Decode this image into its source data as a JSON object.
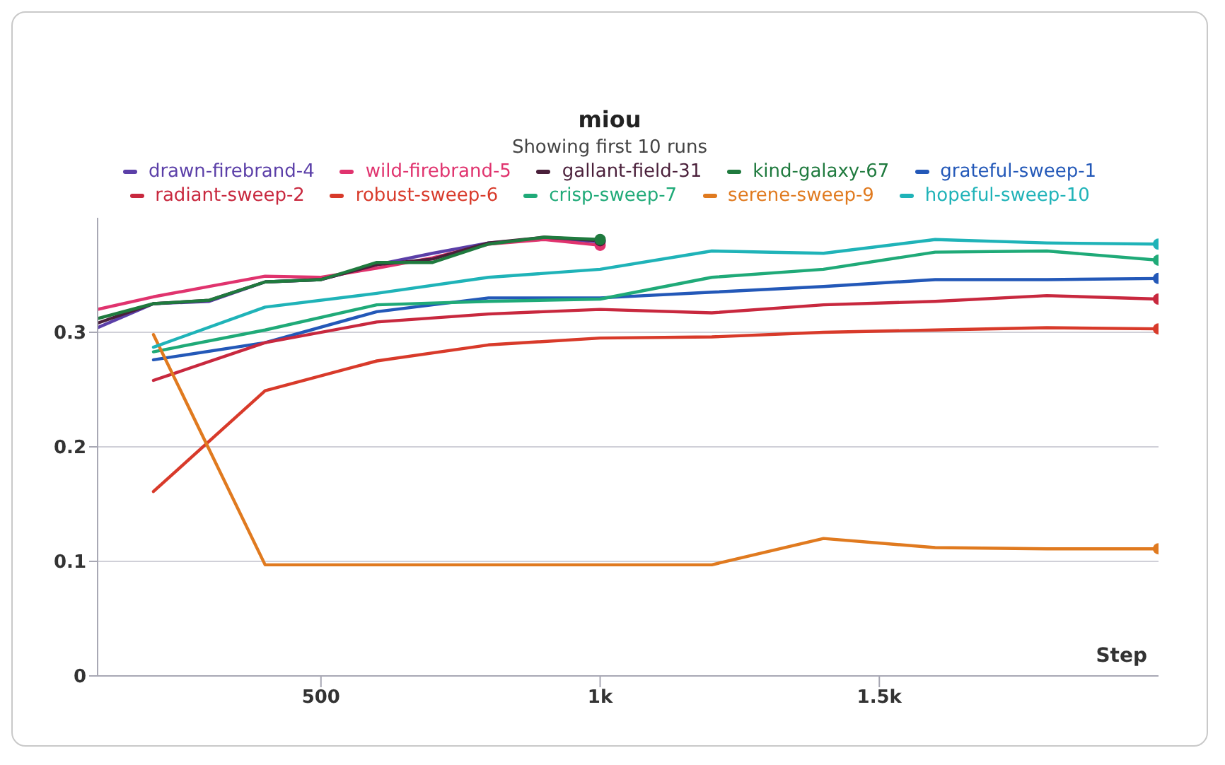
{
  "chart_data": {
    "type": "line",
    "title": "miou",
    "subtitle": "Showing first 10 runs",
    "xlabel": "Step",
    "xlim": [
      100,
      2000
    ],
    "xticks": [
      {
        "value": 500,
        "label": "500"
      },
      {
        "value": 1000,
        "label": "1k"
      },
      {
        "value": 1500,
        "label": "1.5k"
      }
    ],
    "ylim": [
      0,
      0.4
    ],
    "yticks": [
      0,
      0.1,
      0.2,
      0.3
    ],
    "grid": "y",
    "legend": "top",
    "line_style": "solid",
    "series": [
      {
        "name": "drawn-firebrand-4",
        "color": "#5b3fa8",
        "x": [
          100,
          200,
          300,
          400,
          500,
          600,
          700,
          800,
          900,
          1000
        ],
        "values": [
          0.304,
          0.325,
          0.327,
          0.344,
          0.346,
          0.359,
          0.369,
          0.378,
          0.382,
          0.379
        ]
      },
      {
        "name": "wild-firebrand-5",
        "color": "#e0336e",
        "x": [
          100,
          200,
          300,
          400,
          500,
          600,
          700,
          800,
          900,
          1000
        ],
        "values": [
          0.32,
          0.331,
          0.34,
          0.349,
          0.348,
          0.356,
          0.365,
          0.377,
          0.381,
          0.376
        ]
      },
      {
        "name": "gallant-field-31",
        "color": "#4a1f3a",
        "x": [
          100,
          200,
          300,
          400,
          500,
          600,
          700,
          800,
          900,
          1000
        ],
        "values": [
          0.308,
          0.325,
          0.328,
          0.344,
          0.346,
          0.359,
          0.364,
          0.378,
          0.383,
          0.38
        ]
      },
      {
        "name": "kind-galaxy-67",
        "color": "#1f7a3e",
        "x": [
          100,
          200,
          300,
          400,
          500,
          600,
          700,
          800,
          900,
          1000
        ],
        "values": [
          0.312,
          0.325,
          0.328,
          0.344,
          0.346,
          0.361,
          0.361,
          0.377,
          0.383,
          0.381
        ]
      },
      {
        "name": "grateful-sweep-1",
        "color": "#2358b8",
        "x": [
          200,
          400,
          600,
          800,
          1000,
          1200,
          1400,
          1600,
          1800,
          2000
        ],
        "values": [
          0.276,
          0.291,
          0.318,
          0.33,
          0.33,
          0.335,
          0.34,
          0.346,
          0.346,
          0.347
        ]
      },
      {
        "name": "radiant-sweep-2",
        "color": "#c8283e",
        "x": [
          200,
          400,
          600,
          800,
          1000,
          1200,
          1400,
          1600,
          1800,
          2000
        ],
        "values": [
          0.258,
          0.291,
          0.309,
          0.316,
          0.32,
          0.317,
          0.324,
          0.327,
          0.332,
          0.329
        ]
      },
      {
        "name": "robust-sweep-6",
        "color": "#d83a2a",
        "x": [
          200,
          400,
          600,
          800,
          1000,
          1200,
          1400,
          1600,
          1800,
          2000
        ],
        "values": [
          0.161,
          0.249,
          0.275,
          0.289,
          0.295,
          0.296,
          0.3,
          0.302,
          0.304,
          0.303
        ]
      },
      {
        "name": "crisp-sweep-7",
        "color": "#1faa78",
        "x": [
          200,
          400,
          600,
          800,
          1000,
          1200,
          1400,
          1600,
          1800,
          2000
        ],
        "values": [
          0.283,
          0.302,
          0.324,
          0.327,
          0.329,
          0.348,
          0.355,
          0.37,
          0.371,
          0.363
        ]
      },
      {
        "name": "serene-sweep-9",
        "color": "#e07a1f",
        "x": [
          200,
          400,
          600,
          800,
          1000,
          1200,
          1400,
          1600,
          1800,
          2000
        ],
        "values": [
          0.298,
          0.097,
          0.097,
          0.097,
          0.097,
          0.097,
          0.12,
          0.112,
          0.111,
          0.111
        ]
      },
      {
        "name": "hopeful-sweep-10",
        "color": "#1fb3b8",
        "x": [
          200,
          400,
          600,
          800,
          1000,
          1200,
          1400,
          1600,
          1800,
          2000
        ],
        "values": [
          0.287,
          0.322,
          0.334,
          0.348,
          0.355,
          0.371,
          0.369,
          0.381,
          0.378,
          0.377
        ]
      }
    ]
  }
}
